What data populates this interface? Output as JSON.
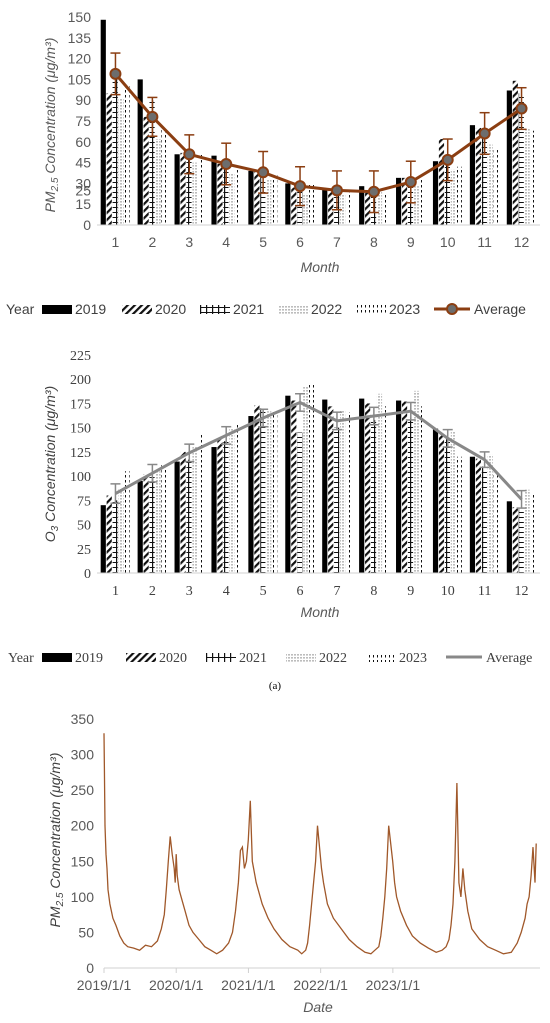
{
  "chart_data": [
    {
      "type": "bar",
      "ylabel_main": "PM",
      "ylabel_sub": "2.5",
      "ylabel_rest": "Concentration (μg/m³)",
      "xlabel": "Month",
      "ylim": [
        0,
        150
      ],
      "yticks": [
        0,
        15,
        25,
        30,
        45,
        60,
        75,
        90,
        105,
        120,
        135,
        150
      ],
      "categories": [
        "1",
        "2",
        "3",
        "4",
        "5",
        "6",
        "7",
        "8",
        "9",
        "10",
        "11",
        "12"
      ],
      "legend_title": "Year",
      "series": [
        {
          "name": "2019",
          "values": [
            148,
            105,
            51,
            50,
            39,
            30,
            26,
            28,
            34,
            46,
            72,
            97
          ]
        },
        {
          "name": "2020",
          "values": [
            95,
            78,
            52,
            44,
            40,
            27,
            25,
            24,
            34,
            62,
            70,
            104
          ]
        },
        {
          "name": "2021",
          "values": [
            110,
            90,
            55,
            48,
            38,
            27,
            27,
            24,
            37,
            50,
            62,
            95
          ]
        },
        {
          "name": "2022",
          "values": [
            91,
            62,
            45,
            37,
            33,
            22,
            22,
            24,
            28,
            40,
            58,
            70
          ]
        },
        {
          "name": "2023",
          "values": [
            100,
            70,
            52,
            41,
            37,
            30,
            26,
            22,
            34,
            42,
            55,
            68
          ]
        }
      ],
      "average": {
        "name": "Average",
        "values": [
          109,
          78,
          51,
          44,
          38,
          28,
          25,
          24,
          31,
          47,
          66,
          84
        ],
        "errors": [
          15,
          14,
          14,
          15,
          15,
          14,
          14,
          15,
          15,
          15,
          15,
          15
        ]
      }
    },
    {
      "type": "bar",
      "ylabel_main": "O",
      "ylabel_sub": "3",
      "ylabel_rest": "Concentration (μg/m³)",
      "xlabel": "Month",
      "ylim": [
        0,
        225
      ],
      "yticks": [
        0,
        25,
        50,
        75,
        100,
        125,
        150,
        175,
        200,
        225
      ],
      "categories": [
        "1",
        "2",
        "3",
        "4",
        "5",
        "6",
        "7",
        "8",
        "9",
        "10",
        "11",
        "12"
      ],
      "legend_title": "Year",
      "series": [
        {
          "name": "2019",
          "values": [
            70,
            95,
            115,
            130,
            162,
            183,
            179,
            180,
            178,
            149,
            120,
            74
          ]
        },
        {
          "name": "2020",
          "values": [
            80,
            102,
            125,
            140,
            173,
            178,
            172,
            175,
            177,
            143,
            118,
            68
          ]
        },
        {
          "name": "2021",
          "values": [
            75,
            99,
            117,
            136,
            170,
            145,
            150,
            158,
            160,
            138,
            110,
            67
          ]
        },
        {
          "name": "2022",
          "values": [
            88,
            105,
            130,
            150,
            167,
            193,
            168,
            185,
            188,
            146,
            122,
            86
          ]
        },
        {
          "name": "2023",
          "values": [
            105,
            112,
            143,
            155,
            166,
            195,
            166,
            172,
            172,
            120,
            104,
            82
          ]
        }
      ],
      "average": {
        "name": "Average",
        "values": [
          82,
          103,
          124,
          142,
          160,
          176,
          157,
          162,
          167,
          139,
          117,
          76
        ],
        "errors": [
          10,
          9,
          9,
          9,
          9,
          9,
          9,
          9,
          9,
          9,
          8,
          9
        ]
      }
    },
    {
      "type": "line",
      "ylabel_main": "PM",
      "ylabel_sub": "2.5",
      "ylabel_rest": "Concentration (μg/m³)",
      "xlabel": "Date",
      "ylim": [
        0,
        350
      ],
      "yticks": [
        0,
        50,
        100,
        150,
        200,
        250,
        300,
        350
      ],
      "xtick_labels": [
        "2019/1/1",
        "2020/1/1",
        "2021/1/1",
        "2022/1/1",
        "2023/1/1"
      ],
      "color": "#a0582a",
      "series": [
        {
          "name": "",
          "x_days": [
            0,
            2,
            5,
            10,
            15,
            20,
            30,
            45,
            60,
            80,
            100,
            120,
            150,
            180,
            210,
            240,
            270,
            290,
            305,
            315,
            325,
            335,
            345,
            355,
            360,
            365,
            370,
            380,
            395,
            410,
            430,
            450,
            480,
            510,
            540,
            570,
            600,
            630,
            650,
            665,
            680,
            690,
            700,
            710,
            720,
            730,
            740,
            750,
            770,
            800,
            830,
            860,
            900,
            940,
            980,
            1000,
            1020,
            1030,
            1040,
            1050,
            1060,
            1070,
            1080,
            1090,
            1100,
            1110,
            1130,
            1160,
            1200,
            1240,
            1280,
            1320,
            1350,
            1370,
            1390,
            1400,
            1410,
            1420,
            1430,
            1440,
            1450,
            1460,
            1470,
            1480,
            1500,
            1530,
            1560,
            1600,
            1640,
            1680,
            1710,
            1730,
            1745,
            1755,
            1765,
            1775,
            1785,
            1795,
            1805,
            1815,
            1825,
            1830,
            1840,
            1860,
            1900,
            1940,
            1980,
            2020,
            2060,
            2090,
            2110,
            2130,
            2140,
            2150,
            2160,
            2170,
            2180,
            2186
          ],
          "values": [
            330,
            280,
            200,
            160,
            140,
            110,
            90,
            70,
            60,
            45,
            35,
            30,
            28,
            25,
            32,
            30,
            38,
            55,
            75,
            110,
            150,
            185,
            160,
            140,
            120,
            160,
            130,
            110,
            95,
            80,
            60,
            50,
            40,
            30,
            25,
            20,
            25,
            35,
            50,
            80,
            120,
            165,
            170,
            140,
            150,
            180,
            235,
            150,
            120,
            90,
            70,
            55,
            40,
            30,
            25,
            20,
            25,
            35,
            60,
            90,
            120,
            150,
            200,
            170,
            140,
            120,
            90,
            70,
            55,
            40,
            30,
            22,
            20,
            25,
            30,
            45,
            70,
            100,
            140,
            200,
            175,
            150,
            120,
            100,
            80,
            60,
            45,
            35,
            28,
            22,
            25,
            30,
            40,
            60,
            90,
            150,
            260,
            120,
            100,
            140,
            110,
            100,
            80,
            55,
            40,
            30,
            25,
            20,
            22,
            35,
            50,
            70,
            90,
            100,
            130,
            170,
            120,
            175
          ]
        }
      ]
    }
  ],
  "caption": "(a)"
}
